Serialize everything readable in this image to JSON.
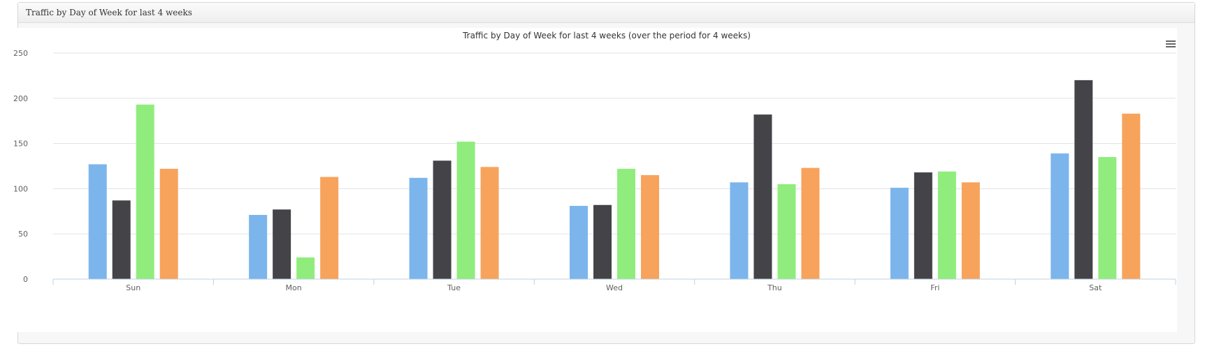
{
  "panel": {
    "title": "Traffic by Day of Week for last 4 weeks"
  },
  "chart_data": {
    "type": "bar",
    "title": "Traffic by Day of Week for last 4 weeks (over the period for 4 weeks)",
    "categories": [
      "Sun",
      "Mon",
      "Tue",
      "Wed",
      "Thu",
      "Fri",
      "Sat"
    ],
    "series": [
      {
        "color": "#7cb5ec",
        "values": [
          127,
          71,
          112,
          81,
          107,
          101,
          139
        ]
      },
      {
        "color": "#434348",
        "values": [
          87,
          77,
          131,
          82,
          182,
          118,
          220
        ]
      },
      {
        "color": "#90ed7d",
        "values": [
          193,
          24,
          152,
          122,
          105,
          119,
          135
        ]
      },
      {
        "color": "#f7a35c",
        "values": [
          122,
          113,
          124,
          115,
          123,
          107,
          183
        ]
      }
    ],
    "y_ticks": [
      0,
      50,
      100,
      150,
      200,
      250
    ],
    "ylim": [
      0,
      250
    ],
    "grid": true,
    "legend": "none",
    "menu_icon": "hamburger-menu-icon"
  }
}
